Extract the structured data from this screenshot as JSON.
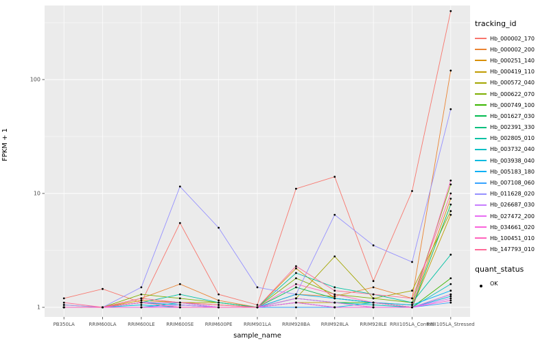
{
  "chart_data": {
    "type": "line",
    "title": "",
    "xlabel": "sample_name",
    "ylabel": "FPKM + 1",
    "y_scale": "log10",
    "ylim": [
      1,
      400
    ],
    "y_ticks": [
      "1",
      "10",
      "100"
    ],
    "grid": true,
    "panel_bg": "#EBEBEB",
    "grid_color": "#FFFFFF",
    "axis_text_color": "#4D4D4D",
    "legend_title": "tracking_id",
    "quant_legend": {
      "title": "quant_status",
      "label": "OK"
    },
    "categories": [
      "PB350LA",
      "RRIM600LA",
      "RRIM600LE",
      "RRIM600SE",
      "RRIM600PE",
      "RRIM901LA",
      "RRIM928BA",
      "RRIM928LA",
      "RRIM928LE",
      "RRII105LA_Control",
      "RRII105LA_Stressed"
    ],
    "series": [
      {
        "name": "Hb_000002_170",
        "color": "#F8766D",
        "values": [
          1.2,
          1.45,
          1.1,
          5.5,
          1.3,
          1.05,
          11,
          14,
          1.7,
          10.5,
          400
        ]
      },
      {
        "name": "Hb_000002_200",
        "color": "#EA8331",
        "values": [
          1.0,
          1.0,
          1.2,
          1.6,
          1.15,
          1.0,
          1.3,
          1.25,
          1.5,
          1.2,
          120
        ]
      },
      {
        "name": "Hb_000251_140",
        "color": "#D89000",
        "values": [
          1.05,
          1.0,
          1.15,
          1.1,
          1.05,
          1.0,
          2.2,
          1.2,
          1.1,
          1.05,
          9
        ]
      },
      {
        "name": "Hb_000419_110",
        "color": "#C09B00",
        "values": [
          1.0,
          1.0,
          1.1,
          1.05,
          1.0,
          1.0,
          1.1,
          1.1,
          1.0,
          1.0,
          6.5
        ]
      },
      {
        "name": "Hb_000572_040",
        "color": "#A3A500",
        "values": [
          1.0,
          1.0,
          1.2,
          1.1,
          1.1,
          1.0,
          1.2,
          2.8,
          1.2,
          1.4,
          7
        ]
      },
      {
        "name": "Hb_000622_070",
        "color": "#7CAE00",
        "values": [
          1.0,
          1.0,
          1.3,
          1.2,
          1.1,
          1.0,
          1.8,
          1.3,
          1.2,
          1.1,
          12
        ]
      },
      {
        "name": "Hb_000749_100",
        "color": "#39B600",
        "values": [
          1.0,
          1.0,
          1.1,
          1.0,
          1.0,
          1.0,
          1.2,
          1.1,
          1.1,
          1.0,
          1.8
        ]
      },
      {
        "name": "Hb_001627_030",
        "color": "#00BB4E",
        "values": [
          1.0,
          1.0,
          1.1,
          1.1,
          1.0,
          1.0,
          1.5,
          1.2,
          1.1,
          1.0,
          8
        ]
      },
      {
        "name": "Hb_002391_330",
        "color": "#00BF7D",
        "values": [
          1.0,
          1.0,
          1.0,
          1.0,
          1.0,
          1.0,
          1.1,
          1.0,
          1.0,
          1.0,
          1.3
        ]
      },
      {
        "name": "Hb_002805_010",
        "color": "#00C1A3",
        "values": [
          1.0,
          1.0,
          1.1,
          1.3,
          1.1,
          1.0,
          2.0,
          1.5,
          1.3,
          1.1,
          2.9
        ]
      },
      {
        "name": "Hb_003732_040",
        "color": "#00BFC4",
        "values": [
          1.0,
          1.0,
          1.0,
          1.1,
          1.0,
          1.0,
          1.2,
          1.1,
          1.05,
          1.0,
          1.6
        ]
      },
      {
        "name": "Hb_003938_040",
        "color": "#00BAE0",
        "values": [
          1.0,
          1.0,
          1.05,
          1.0,
          1.0,
          1.0,
          1.1,
          1.0,
          1.1,
          1.0,
          1.25
        ]
      },
      {
        "name": "Hb_005183_180",
        "color": "#00B0F6",
        "values": [
          1.0,
          1.0,
          1.1,
          1.05,
          1.0,
          1.0,
          1.3,
          1.2,
          1.1,
          1.05,
          1.4
        ]
      },
      {
        "name": "Hb_007108_060",
        "color": "#35A2FF",
        "values": [
          1.0,
          1.0,
          1.0,
          1.0,
          1.0,
          1.0,
          1.0,
          1.0,
          1.0,
          1.0,
          1.1
        ]
      },
      {
        "name": "Hb_011628_020",
        "color": "#9590FF",
        "values": [
          1.05,
          1.0,
          1.5,
          11.5,
          5.0,
          1.5,
          1.3,
          6.5,
          3.5,
          2.5,
          55
        ]
      },
      {
        "name": "Hb_026687_030",
        "color": "#C77CFF",
        "values": [
          1.0,
          1.0,
          1.0,
          1.05,
          1.0,
          1.0,
          1.1,
          1.0,
          1.0,
          1.0,
          1.2
        ]
      },
      {
        "name": "Hb_027472_200",
        "color": "#E76BF3",
        "values": [
          1.0,
          1.0,
          1.1,
          1.1,
          1.0,
          1.0,
          1.2,
          1.1,
          1.0,
          1.0,
          1.3
        ]
      },
      {
        "name": "Hb_034661_020",
        "color": "#FA62DB",
        "values": [
          1.0,
          1.0,
          1.0,
          1.0,
          1.0,
          1.0,
          1.1,
          1.0,
          1.0,
          1.0,
          1.15
        ]
      },
      {
        "name": "Hb_100451_010",
        "color": "#FF62BC",
        "values": [
          1.0,
          1.0,
          1.1,
          1.0,
          1.0,
          1.0,
          1.6,
          1.3,
          1.1,
          1.0,
          13
        ]
      },
      {
        "name": "Hb_147793_010",
        "color": "#FF6A98",
        "values": [
          1.1,
          1.0,
          1.2,
          1.1,
          1.05,
          1.0,
          2.3,
          1.4,
          1.3,
          1.2,
          10
        ]
      }
    ]
  }
}
